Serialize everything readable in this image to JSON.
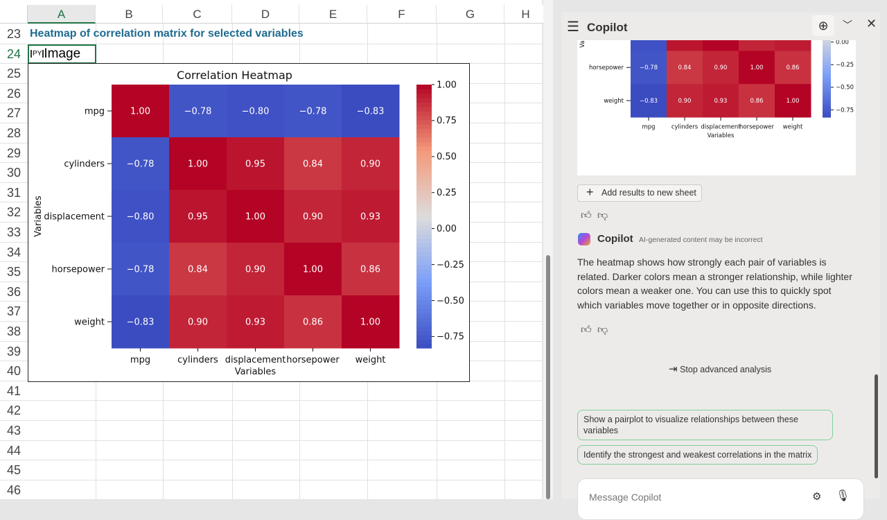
{
  "sheet": {
    "columns": [
      "A",
      "B",
      "C",
      "D",
      "E",
      "F",
      "G",
      "H"
    ],
    "rows": [
      "23",
      "24",
      "25",
      "26",
      "27",
      "28",
      "29",
      "30",
      "31",
      "32",
      "33",
      "34",
      "35",
      "36",
      "37",
      "38",
      "39",
      "40",
      "41",
      "42",
      "43",
      "44",
      "45",
      "46"
    ],
    "title_cell": "Heatmap of correlation matrix for selected variables",
    "py_badge": "PY",
    "selected_cell": "Image"
  },
  "chart_data": {
    "type": "heatmap",
    "title": "Correlation Heatmap",
    "xlabel": "Variables",
    "ylabel": "Variables",
    "categories": [
      "mpg",
      "cylinders",
      "displacement",
      "horsepower",
      "weight"
    ],
    "values": [
      [
        1.0,
        -0.78,
        -0.8,
        -0.78,
        -0.83
      ],
      [
        -0.78,
        1.0,
        0.95,
        0.84,
        0.9
      ],
      [
        -0.8,
        0.95,
        1.0,
        0.9,
        0.93
      ],
      [
        -0.78,
        0.84,
        0.9,
        1.0,
        0.86
      ],
      [
        -0.83,
        0.9,
        0.93,
        0.86,
        1.0
      ]
    ],
    "colormap": "coolwarm",
    "colorbar_range": [
      -0.83,
      1.0
    ],
    "colorbar_ticks": [
      "1.00",
      "0.75",
      "0.50",
      "0.25",
      "0.00",
      "−0.25",
      "−0.50",
      "−0.75"
    ]
  },
  "copilot": {
    "title": "Copilot",
    "add_results": "Add results to new sheet",
    "sender": "Copilot",
    "disclaimer": "AI-generated content may be incorrect",
    "message": "The heatmap shows how strongly each pair of variables is related. Darker colors mean a stronger relationship, while lighter colors mean a weaker one. You can use this to quickly spot which variables move together or in opposite directions.",
    "stop": "Stop advanced analysis",
    "suggestions": [
      "Show a pairplot to visualize relationships between these variables",
      "Identify the strongest and weakest correlations in the matrix"
    ],
    "input_placeholder": "Message Copilot"
  }
}
